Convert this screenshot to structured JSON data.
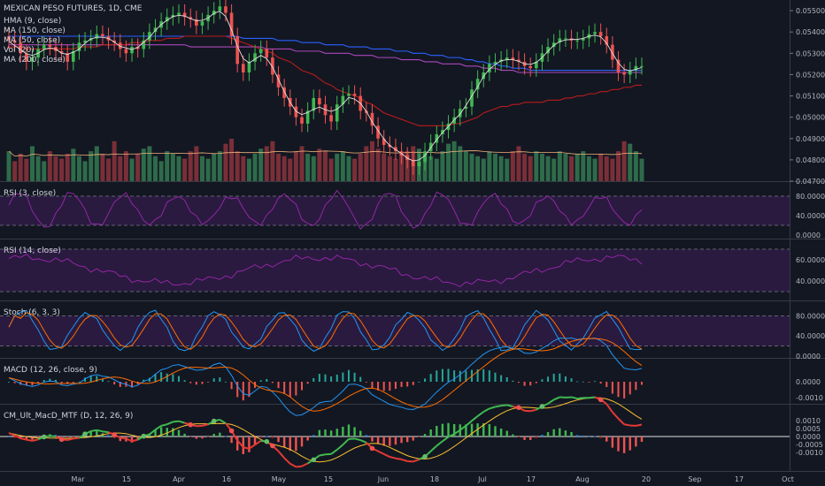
{
  "chart_data": {
    "type": "line",
    "title": "MEXICAN PESO FUTURES, 1D, CME",
    "x_axis": {
      "ticks": [
        "Mar",
        "15",
        "Apr",
        "16",
        "May",
        "15",
        "Jun",
        "18",
        "Jul",
        "17",
        "Aug",
        "20",
        "Sep",
        "17",
        "Oct"
      ]
    },
    "price_panel": {
      "legend": [
        "HMA (9, close)",
        "MA (150, close)",
        "MA (50, close)",
        "Vol (20)",
        "MA (200, close)"
      ],
      "y_ticks": [
        "0.05500",
        "0.05400",
        "0.05300",
        "0.05200",
        "0.05100",
        "0.05000",
        "0.04900",
        "0.04800",
        "0.04700"
      ],
      "ylim": [
        0.047,
        0.0555
      ],
      "candles_close": [
        0.0536,
        0.0535,
        0.053,
        0.0526,
        0.0528,
        0.0532,
        0.0534,
        0.0533,
        0.0531,
        0.053,
        0.0526,
        0.0531,
        0.0535,
        0.0536,
        0.0537,
        0.0539,
        0.0538,
        0.0536,
        0.0535,
        0.0532,
        0.053,
        0.0533,
        0.0532,
        0.0536,
        0.054,
        0.0542,
        0.0545,
        0.0547,
        0.0548,
        0.0549,
        0.0547,
        0.0546,
        0.0543,
        0.0545,
        0.0548,
        0.055,
        0.0552,
        0.0549,
        0.0538,
        0.0525,
        0.0521,
        0.0526,
        0.053,
        0.0532,
        0.0528,
        0.052,
        0.0514,
        0.0509,
        0.0505,
        0.05,
        0.0497,
        0.0503,
        0.0509,
        0.0506,
        0.0501,
        0.0498,
        0.0506,
        0.051,
        0.0511,
        0.051,
        0.0503,
        0.0502,
        0.0496,
        0.049,
        0.0487,
        0.0486,
        0.0484,
        0.0482,
        0.048,
        0.0477,
        0.0479,
        0.0484,
        0.0488,
        0.0492,
        0.0494,
        0.0497,
        0.05,
        0.0504,
        0.0505,
        0.0513,
        0.0518,
        0.0521,
        0.0525,
        0.0526,
        0.0527,
        0.0528,
        0.0527,
        0.0526,
        0.0524,
        0.0523,
        0.0526,
        0.053,
        0.0533,
        0.0535,
        0.0537,
        0.0537,
        0.0536,
        0.0536,
        0.0537,
        0.0539,
        0.054,
        0.0538,
        0.0534,
        0.0527,
        0.0521,
        0.052,
        0.0522,
        0.0524,
        0.0524
      ],
      "ma50": [
        0.0533,
        0.0533,
        0.0533,
        0.0532,
        0.0532,
        0.0532,
        0.0532,
        0.0532,
        0.0532,
        0.0532,
        0.0532,
        0.0532,
        0.0533,
        0.0533,
        0.0533,
        0.0533,
        0.0534,
        0.0534,
        0.0534,
        0.0534,
        0.0534,
        0.0535,
        0.0535,
        0.0535,
        0.0536,
        0.0536,
        0.0536,
        0.0537,
        0.0537,
        0.0537,
        0.0538,
        0.0538,
        0.0538,
        0.0538,
        0.0538,
        0.0538,
        0.0538,
        0.0538,
        0.0537,
        0.0536,
        0.0535,
        0.0534,
        0.0533,
        0.0532,
        0.0531,
        0.053,
        0.0528,
        0.0527,
        0.0526,
        0.0524,
        0.0522,
        0.0521,
        0.052,
        0.0518,
        0.0516,
        0.0515,
        0.0513,
        0.0512,
        0.0511,
        0.051,
        0.0509,
        0.0507,
        0.0506,
        0.0504,
        0.0502,
        0.0501,
        0.05,
        0.0499,
        0.0498,
        0.0497,
        0.0496,
        0.0496,
        0.0496,
        0.0496,
        0.0496,
        0.0496,
        0.0497,
        0.0497,
        0.0498,
        0.0499,
        0.05,
        0.0502,
        0.0503,
        0.0504,
        0.0505,
        0.0505,
        0.0506,
        0.0506,
        0.0507,
        0.0507,
        0.0507,
        0.0507,
        0.0508,
        0.0508,
        0.0508,
        0.0509,
        0.0509,
        0.051,
        0.051,
        0.0511,
        0.0511,
        0.0512,
        0.0512,
        0.0513,
        0.0513,
        0.0514,
        0.0514,
        0.0515,
        0.0515
      ],
      "ma150": [
        0.0538,
        0.0538,
        0.0538,
        0.0538,
        0.0538,
        0.0538,
        0.0538,
        0.0538,
        0.0538,
        0.0538,
        0.0538,
        0.0538,
        0.0538,
        0.0538,
        0.0538,
        0.0538,
        0.0538,
        0.0538,
        0.0538,
        0.0538,
        0.0538,
        0.0538,
        0.0538,
        0.0538,
        0.0538,
        0.0538,
        0.0538,
        0.0538,
        0.0538,
        0.0538,
        0.0538,
        0.0538,
        0.0538,
        0.0538,
        0.0538,
        0.0538,
        0.0538,
        0.0538,
        0.0538,
        0.0538,
        0.0537,
        0.0537,
        0.0537,
        0.0537,
        0.0537,
        0.0537,
        0.0536,
        0.0536,
        0.0536,
        0.0536,
        0.0535,
        0.0535,
        0.0535,
        0.0535,
        0.0534,
        0.0534,
        0.0534,
        0.0534,
        0.0533,
        0.0533,
        0.0533,
        0.0533,
        0.0532,
        0.0532,
        0.0532,
        0.0532,
        0.0531,
        0.0531,
        0.0531,
        0.053,
        0.053,
        0.053,
        0.0529,
        0.0529,
        0.0529,
        0.0528,
        0.0528,
        0.0528,
        0.0527,
        0.0527,
        0.0526,
        0.0526,
        0.0525,
        0.0525,
        0.0524,
        0.0524,
        0.0523,
        0.0523,
        0.0523,
        0.0522,
        0.0522,
        0.0522,
        0.0522,
        0.0522,
        0.0522,
        0.0522,
        0.0522,
        0.0522,
        0.0522,
        0.0522,
        0.0522,
        0.0522,
        0.0522,
        0.0522,
        0.0522,
        0.0522,
        0.0522,
        0.0522,
        0.0522
      ],
      "ma200": [
        0.0534,
        0.0534,
        0.0534,
        0.0534,
        0.0534,
        0.0534,
        0.0534,
        0.0534,
        0.0534,
        0.0534,
        0.0534,
        0.0534,
        0.0534,
        0.0534,
        0.0534,
        0.0534,
        0.0534,
        0.0534,
        0.0534,
        0.0534,
        0.0534,
        0.0534,
        0.0534,
        0.0534,
        0.0534,
        0.0534,
        0.0534,
        0.0534,
        0.0534,
        0.0534,
        0.0534,
        0.0533,
        0.0533,
        0.0533,
        0.0533,
        0.0533,
        0.0533,
        0.0533,
        0.0533,
        0.0533,
        0.0533,
        0.0533,
        0.0533,
        0.0533,
        0.0532,
        0.0532,
        0.0532,
        0.0532,
        0.0532,
        0.0531,
        0.0531,
        0.0531,
        0.0531,
        0.0531,
        0.053,
        0.053,
        0.053,
        0.053,
        0.053,
        0.0529,
        0.0529,
        0.0529,
        0.0529,
        0.0528,
        0.0528,
        0.0528,
        0.0528,
        0.0527,
        0.0527,
        0.0527,
        0.0527,
        0.0526,
        0.0526,
        0.0526,
        0.0525,
        0.0525,
        0.0525,
        0.0525,
        0.0524,
        0.0524,
        0.0524,
        0.0523,
        0.0523,
        0.0523,
        0.0522,
        0.0522,
        0.0522,
        0.0521,
        0.0521,
        0.0521,
        0.0521,
        0.0521,
        0.0521,
        0.0521,
        0.0521,
        0.0521,
        0.0521,
        0.0521,
        0.0521,
        0.0521,
        0.0521,
        0.0521,
        0.0521,
        0.0521,
        0.0521,
        0.0521,
        0.0521,
        0.0521,
        0.0521
      ],
      "volume": [
        60,
        40,
        55,
        45,
        70,
        50,
        40,
        60,
        50,
        45,
        55,
        65,
        50,
        40,
        60,
        70,
        55,
        45,
        80,
        50,
        60,
        45,
        55,
        65,
        70,
        50,
        40,
        60,
        55,
        50,
        45,
        60,
        70,
        50,
        45,
        55,
        60,
        75,
        85,
        60,
        50,
        45,
        55,
        65,
        70,
        80,
        55,
        50,
        45,
        60,
        70,
        55,
        50,
        65,
        60,
        45,
        55,
        60,
        50,
        45,
        55,
        70,
        80,
        65,
        55,
        50,
        45,
        55,
        60,
        70,
        65,
        55,
        50,
        45,
        60,
        75,
        80,
        70,
        60,
        55,
        50,
        45,
        60,
        55,
        50,
        45,
        60,
        70,
        55,
        50,
        60,
        55,
        50,
        45,
        60,
        55,
        50,
        55,
        60,
        50,
        45,
        55,
        50,
        45,
        60,
        80,
        75,
        60,
        45
      ]
    },
    "rsi3": {
      "legend": "RSI (3, close)",
      "y_ticks": [
        "80.0000",
        "40.0000",
        "0.0000"
      ],
      "levels": [
        80,
        20
      ]
    },
    "rsi14": {
      "legend": "RSI (14, close)",
      "y_ticks": [
        "60.0000",
        "40.0000"
      ],
      "levels": [
        70,
        30
      ]
    },
    "stoch": {
      "legend": "Stoch (6, 3, 3)",
      "y_ticks": [
        "80.0000",
        "40.0000",
        "0.0000"
      ],
      "levels": [
        80,
        20
      ]
    },
    "macd": {
      "legend": "MACD (12, 26, close, 9)",
      "y_ticks": [
        "0.0000",
        "-0.0010"
      ]
    },
    "cm_ult_macd": {
      "legend": "CM_Ult_MacD_MTF (D, 12, 26, 9)",
      "y_ticks": [
        "0.0010",
        "0.0005",
        "0.0000",
        "-0.0005",
        "-0.0010"
      ]
    },
    "colors": {
      "background": "#131722",
      "up": "#26a69a",
      "up_green": "#3fb950",
      "down": "#ef5350",
      "hma": "#e0e0e0",
      "ma50": "#b71c1c",
      "ma150": "#2962ff",
      "ma200": "#ab47bc",
      "rsi": "#9c27b0",
      "stoch_k": "#2196f3",
      "stoch_d": "#ff6d00",
      "band": "#2a1a3f"
    }
  }
}
